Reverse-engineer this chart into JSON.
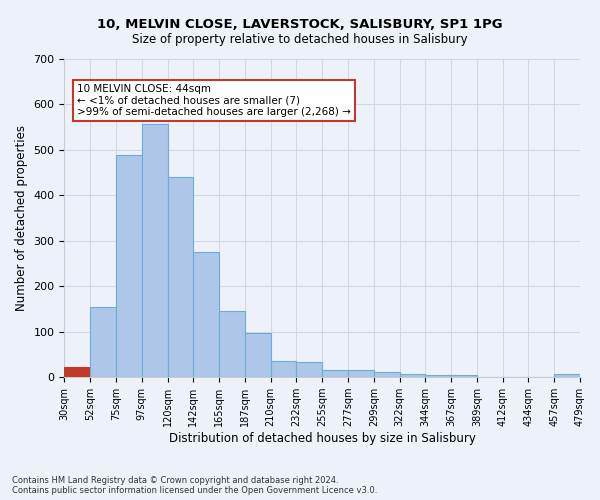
{
  "title1": "10, MELVIN CLOSE, LAVERSTOCK, SALISBURY, SP1 1PG",
  "title2": "Size of property relative to detached houses in Salisbury",
  "xlabel": "Distribution of detached houses by size in Salisbury",
  "ylabel": "Number of detached properties",
  "footnote": "Contains HM Land Registry data © Crown copyright and database right 2024.\nContains public sector information licensed under the Open Government Licence v3.0.",
  "bin_labels": [
    "30sqm",
    "52sqm",
    "75sqm",
    "97sqm",
    "120sqm",
    "142sqm",
    "165sqm",
    "187sqm",
    "210sqm",
    "232sqm",
    "255sqm",
    "277sqm",
    "299sqm",
    "322sqm",
    "344sqm",
    "367sqm",
    "389sqm",
    "412sqm",
    "434sqm",
    "457sqm",
    "479sqm"
  ],
  "bar_values": [
    22,
    155,
    488,
    558,
    440,
    275,
    145,
    98,
    35,
    33,
    15,
    15,
    12,
    8,
    5,
    5,
    0,
    0,
    0,
    7
  ],
  "bar_color": "#aec6e8",
  "bar_edge_color": "#6aaed6",
  "highlight_bar_index": 0,
  "highlight_color": "#c0392b",
  "annotation_text": "10 MELVIN CLOSE: 44sqm\n← <1% of detached houses are smaller (7)\n>99% of semi-detached houses are larger (2,268) →",
  "annotation_box_color": "#ffffff",
  "annotation_box_edge": "#c0392b",
  "ylim": [
    0,
    700
  ],
  "yticks": [
    0,
    100,
    200,
    300,
    400,
    500,
    600,
    700
  ],
  "grid_color": "#d0d8e8",
  "bg_color": "#edf2fa"
}
